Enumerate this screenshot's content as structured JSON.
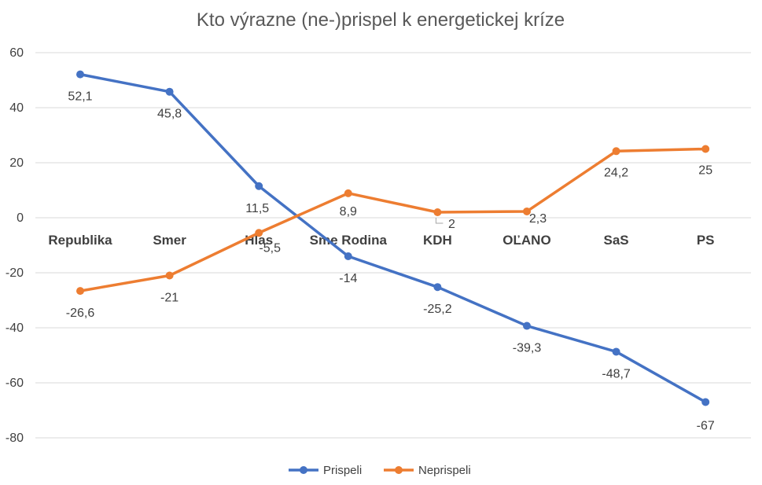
{
  "chart_data": {
    "type": "line",
    "title": "Kto výrazne (ne-)prispel k energetickej kríze",
    "categories": [
      "Republika",
      "Smer",
      "Hlas",
      "Sme Rodina",
      "KDH",
      "OĽANO",
      "SaS",
      "PS"
    ],
    "y_ticks": [
      60,
      40,
      20,
      0,
      -20,
      -40,
      -60,
      -80
    ],
    "ylim": [
      -80,
      60
    ],
    "grid": true,
    "legend_position": "bottom",
    "series": [
      {
        "name": "Prispeli",
        "color": "#4472C4",
        "values": [
          52.1,
          45.8,
          11.5,
          -14,
          -25.2,
          -39.3,
          -48.7,
          -67
        ],
        "labels": [
          "52,1",
          "45,8",
          "11,5",
          "-14",
          "-25,2",
          "-39,3",
          "-48,7",
          "-67"
        ]
      },
      {
        "name": "Neprispeli",
        "color": "#ED7D31",
        "values": [
          -26.6,
          -21,
          -5.5,
          8.9,
          2,
          2.3,
          24.2,
          25
        ],
        "labels": [
          "-26,6",
          "-21",
          "-5,5",
          "8,9",
          "2",
          "2,3",
          "24,2",
          "25"
        ]
      }
    ]
  }
}
